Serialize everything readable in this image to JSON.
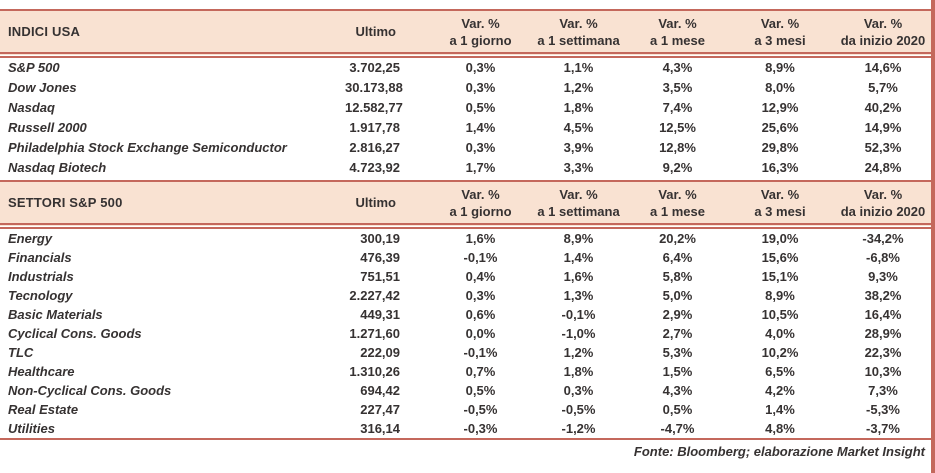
{
  "colors": {
    "header_bg": "#f9e2d2",
    "border_line": "#c4685c",
    "text": "#363232"
  },
  "sections": [
    {
      "title": "INDICI USA",
      "ultimo_label": "Ultimo",
      "var_headers": [
        {
          "l1": "Var. %",
          "l2": "a 1 giorno"
        },
        {
          "l1": "Var. %",
          "l2": "a 1 settimana"
        },
        {
          "l1": "Var. %",
          "l2": "a 1 mese"
        },
        {
          "l1": "Var. %",
          "l2": "a 3 mesi"
        },
        {
          "l1": "Var. %",
          "l2": "da inizio 2020"
        }
      ],
      "rows": [
        {
          "name": "S&P 500",
          "ultimo": "3.702,25",
          "vars": [
            "0,3%",
            "1,1%",
            "4,3%",
            "8,9%",
            "14,6%"
          ]
        },
        {
          "name": "Dow Jones",
          "ultimo": "30.173,88",
          "vars": [
            "0,3%",
            "1,2%",
            "3,5%",
            "8,0%",
            "5,7%"
          ]
        },
        {
          "name": "Nasdaq",
          "ultimo": "12.582,77",
          "vars": [
            "0,5%",
            "1,8%",
            "7,4%",
            "12,9%",
            "40,2%"
          ]
        },
        {
          "name": "Russell 2000",
          "ultimo": "1.917,78",
          "vars": [
            "1,4%",
            "4,5%",
            "12,5%",
            "25,6%",
            "14,9%"
          ]
        },
        {
          "name": "Philadelphia Stock Exchange Semiconductor",
          "ultimo": "2.816,27",
          "vars": [
            "0,3%",
            "3,9%",
            "12,8%",
            "29,8%",
            "52,3%"
          ]
        },
        {
          "name": "Nasdaq Biotech",
          "ultimo": "4.723,92",
          "vars": [
            "1,7%",
            "3,3%",
            "9,2%",
            "16,3%",
            "24,8%"
          ]
        }
      ]
    },
    {
      "title": "SETTORI S&P 500",
      "ultimo_label": "Ultimo",
      "var_headers": [
        {
          "l1": "Var. %",
          "l2": "a 1 giorno"
        },
        {
          "l1": "Var. %",
          "l2": "a 1 settimana"
        },
        {
          "l1": "Var. %",
          "l2": "a 1 mese"
        },
        {
          "l1": "Var. %",
          "l2": "a 3 mesi"
        },
        {
          "l1": "Var. %",
          "l2": "da inizio 2020"
        }
      ],
      "rows": [
        {
          "name": "Energy",
          "ultimo": "300,19",
          "vars": [
            "1,6%",
            "8,9%",
            "20,2%",
            "19,0%",
            "-34,2%"
          ]
        },
        {
          "name": "Financials",
          "ultimo": "476,39",
          "vars": [
            "-0,1%",
            "1,4%",
            "6,4%",
            "15,6%",
            "-6,8%"
          ]
        },
        {
          "name": "Industrials",
          "ultimo": "751,51",
          "vars": [
            "0,4%",
            "1,6%",
            "5,8%",
            "15,1%",
            "9,3%"
          ]
        },
        {
          "name": "Tecnology",
          "ultimo": "2.227,42",
          "vars": [
            "0,3%",
            "1,3%",
            "5,0%",
            "8,9%",
            "38,2%"
          ]
        },
        {
          "name": "Basic Materials",
          "ultimo": "449,31",
          "vars": [
            "0,6%",
            "-0,1%",
            "2,9%",
            "10,5%",
            "16,4%"
          ]
        },
        {
          "name": "Cyclical Cons. Goods",
          "ultimo": "1.271,60",
          "vars": [
            "0,0%",
            "-1,0%",
            "2,7%",
            "4,0%",
            "28,9%"
          ]
        },
        {
          "name": "TLC",
          "ultimo": "222,09",
          "vars": [
            "-0,1%",
            "1,2%",
            "5,3%",
            "10,2%",
            "22,3%"
          ]
        },
        {
          "name": "Healthcare",
          "ultimo": "1.310,26",
          "vars": [
            "0,7%",
            "1,8%",
            "1,5%",
            "6,5%",
            "10,3%"
          ]
        },
        {
          "name": "Non-Cyclical Cons. Goods",
          "ultimo": "694,42",
          "vars": [
            "0,5%",
            "0,3%",
            "4,3%",
            "4,2%",
            "7,3%"
          ]
        },
        {
          "name": "Real Estate",
          "ultimo": "227,47",
          "vars": [
            "-0,5%",
            "-0,5%",
            "0,5%",
            "1,4%",
            "-5,3%"
          ]
        },
        {
          "name": "Utilities",
          "ultimo": "316,14",
          "vars": [
            "-0,3%",
            "-1,2%",
            "-4,7%",
            "4,8%",
            "-3,7%"
          ]
        }
      ]
    }
  ],
  "footer": "Fonte: Bloomberg; elaborazione Market Insight"
}
